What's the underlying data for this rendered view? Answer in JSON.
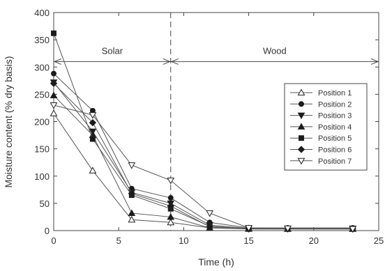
{
  "chart_data": {
    "type": "line",
    "xlabel": "Time (h)",
    "ylabel": "Moisture content (% dry basis)",
    "xlim": [
      0,
      25
    ],
    "ylim": [
      0,
      400
    ],
    "xticks": [
      "0",
      "5",
      "10",
      "15",
      "20",
      "25"
    ],
    "yticks": [
      "0",
      "50",
      "100",
      "150",
      "200",
      "250",
      "300",
      "350",
      "400"
    ],
    "legend_position": "right",
    "regions": [
      {
        "label": "Solar",
        "from": 0,
        "to": 9
      },
      {
        "label": "Wood",
        "from": 9,
        "to": 25
      }
    ],
    "region_arrow_y": 310,
    "divider_x": 9,
    "x": [
      0,
      3,
      6,
      9,
      12,
      15,
      18,
      23
    ],
    "series": [
      {
        "name": "Position 1",
        "marker": "triangle-up-open",
        "values": [
          215,
          110,
          20,
          15,
          5,
          4,
          3,
          3
        ]
      },
      {
        "name": "Position 2",
        "marker": "circle",
        "values": [
          288,
          220,
          77,
          60,
          15,
          5,
          5,
          5
        ]
      },
      {
        "name": "Position 3",
        "marker": "triangle-down",
        "values": [
          272,
          182,
          70,
          50,
          10,
          4,
          4,
          4
        ]
      },
      {
        "name": "Position 4",
        "marker": "triangle-up",
        "values": [
          248,
          175,
          32,
          25,
          5,
          3,
          3,
          3
        ]
      },
      {
        "name": "Position 5",
        "marker": "square",
        "values": [
          362,
          168,
          65,
          40,
          8,
          3,
          3,
          3
        ]
      },
      {
        "name": "Position 6",
        "marker": "diamond",
        "values": [
          270,
          198,
          68,
          45,
          7,
          3,
          3,
          3
        ]
      },
      {
        "name": "Position 7",
        "marker": "triangle-down-open",
        "values": [
          230,
          212,
          120,
          92,
          32,
          5,
          4,
          3
        ]
      }
    ]
  }
}
